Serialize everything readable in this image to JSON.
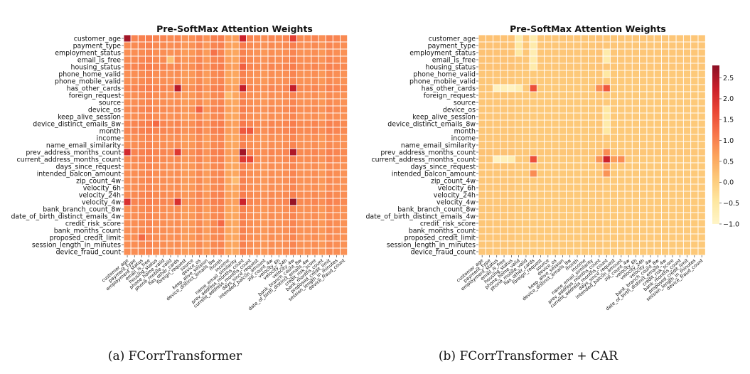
{
  "features": [
    "customer_age",
    "payment_type",
    "employment_status",
    "email_is_free",
    "housing_status",
    "phone_home_valid",
    "phone_mobile_valid",
    "has_other_cards",
    "foreign_request",
    "source",
    "device_os",
    "keep_alive_session",
    "device_distinct_emails_8w",
    "month",
    "income",
    "name_email_similarity",
    "prev_address_months_count",
    "current_address_months_count",
    "days_since_request",
    "intended_balcon_amount",
    "zip_count_4w",
    "velocity_6h",
    "velocity_24h",
    "velocity_4w",
    "bank_branch_count_8w",
    "date_of_birth_distinct_emails_4w",
    "credit_risk_score",
    "bank_months_count",
    "proposed_credit_limit",
    "session_length_in_minutes",
    "device_fraud_count"
  ],
  "colorbar": {
    "ticks": [
      "2.5",
      "2.0",
      "1.5",
      "1.0",
      "0.5",
      "0.0",
      "−0.5",
      "−1.0"
    ],
    "min": -1.0,
    "max": 2.8,
    "colormap": [
      "#fff5c8",
      "#fee7a0",
      "#fdc979",
      "#fca35c",
      "#f7744a",
      "#e94535",
      "#c91e2a",
      "#8c1025"
    ]
  },
  "chart_data": [
    {
      "type": "heatmap",
      "title": "Pre-SoftMax Attention Weights",
      "caption": "(a) FCorrTransformer",
      "base_value": 0.82,
      "row_bias": [
        0.1,
        0.05,
        0.0,
        0.05,
        0.1,
        0.0,
        0.0,
        0.1,
        0.0,
        0.0,
        0.05,
        0.0,
        0.1,
        0.1,
        0.0,
        0.0,
        0.1,
        0.05,
        0.0,
        0.0,
        0.0,
        0.0,
        0.05,
        0.1,
        0.0,
        0.0,
        0.0,
        0.0,
        0.0,
        0.0,
        0.0
      ],
      "col_bias": [
        0.05,
        0.05,
        0.1,
        0.15,
        0.05,
        0.05,
        0.0,
        0.05,
        -0.1,
        -0.05,
        0.1,
        -0.1,
        0.1,
        0.15,
        -0.2,
        -0.25,
        0.2,
        0.05,
        0.0,
        -0.05,
        0.05,
        0.0,
        0.05,
        0.15,
        0.0,
        0.0,
        0.05,
        -0.05,
        0.1,
        0.05,
        0.0
      ],
      "hot_cells": [
        [
          0,
          0,
          2.6
        ],
        [
          0,
          16,
          2.2
        ],
        [
          0,
          23,
          1.8
        ],
        [
          7,
          7,
          2.4
        ],
        [
          7,
          16,
          2.3
        ],
        [
          7,
          23,
          2.3
        ],
        [
          16,
          0,
          2.1
        ],
        [
          16,
          7,
          1.9
        ],
        [
          16,
          16,
          2.6
        ],
        [
          16,
          23,
          2.5
        ],
        [
          17,
          16,
          1.9
        ],
        [
          17,
          17,
          1.7
        ],
        [
          23,
          0,
          2.0
        ],
        [
          23,
          7,
          2.0
        ],
        [
          23,
          16,
          2.2
        ],
        [
          23,
          23,
          2.7
        ],
        [
          13,
          16,
          1.5
        ],
        [
          13,
          17,
          1.5
        ],
        [
          12,
          4,
          1.3
        ],
        [
          4,
          16,
          1.4
        ],
        [
          2,
          12,
          1.2
        ],
        [
          10,
          10,
          1.4
        ],
        [
          3,
          6,
          0.2
        ],
        [
          8,
          14,
          0.3
        ],
        [
          20,
          15,
          0.3
        ],
        [
          26,
          13,
          1.3
        ],
        [
          28,
          2,
          1.3
        ]
      ],
      "vmin": -1.0,
      "vmax": 2.8
    },
    {
      "type": "heatmap",
      "title": "Pre-SoftMax Attention Weights",
      "caption": "(b) FCorrTransformer + CAR",
      "base_value": 0.08,
      "row_bias": [
        0.05,
        0.05,
        0.05,
        0.05,
        0.05,
        0.0,
        0.0,
        0.0,
        0.0,
        0.0,
        0.0,
        0.0,
        0.0,
        0.0,
        0.0,
        0.0,
        0.05,
        0.0,
        0.0,
        0.0,
        0.0,
        0.0,
        0.0,
        0.0,
        0.0,
        0.0,
        0.0,
        0.0,
        0.0,
        0.0,
        0.0
      ],
      "col_bias": [
        0.05,
        0.05,
        0.05,
        0.05,
        0.05,
        0.0,
        0.0,
        0.0,
        0.0,
        0.0,
        0.0,
        0.0,
        0.0,
        0.0,
        0.0,
        0.0,
        0.05,
        0.0,
        0.0,
        0.0,
        0.0,
        0.0,
        0.0,
        0.0,
        0.0,
        0.0,
        0.0,
        0.0,
        0.0,
        0.0,
        0.0
      ],
      "hot_cells": [
        [
          7,
          7,
          1.6
        ],
        [
          7,
          17,
          1.5
        ],
        [
          17,
          7,
          1.6
        ],
        [
          17,
          17,
          2.2
        ],
        [
          16,
          17,
          0.9
        ],
        [
          18,
          17,
          0.7
        ],
        [
          19,
          7,
          0.9
        ],
        [
          19,
          17,
          0.8
        ],
        [
          7,
          16,
          0.9
        ],
        [
          17,
          16,
          0.8
        ],
        [
          17,
          18,
          0.7
        ],
        [
          17,
          19,
          0.9
        ],
        [
          7,
          2,
          -0.9
        ],
        [
          7,
          3,
          -0.8
        ],
        [
          7,
          4,
          -0.9
        ],
        [
          7,
          5,
          -0.7
        ],
        [
          17,
          2,
          -0.9
        ],
        [
          17,
          3,
          -0.8
        ],
        [
          17,
          4,
          -0.7
        ],
        [
          0,
          7,
          -0.6
        ],
        [
          1,
          7,
          -0.6
        ],
        [
          2,
          7,
          -0.7
        ],
        [
          3,
          7,
          -0.6
        ],
        [
          4,
          7,
          -0.6
        ],
        [
          2,
          17,
          -0.6
        ],
        [
          3,
          17,
          -0.6
        ],
        [
          5,
          17,
          -0.5
        ],
        [
          10,
          17,
          -0.5
        ],
        [
          11,
          17,
          -0.5
        ],
        [
          12,
          17,
          -0.6
        ],
        [
          13,
          17,
          -0.5
        ],
        [
          0,
          5,
          -0.6
        ],
        [
          1,
          5,
          -0.5
        ],
        [
          2,
          5,
          -0.5
        ]
      ],
      "vmin": -1.0,
      "vmax": 2.8
    }
  ]
}
